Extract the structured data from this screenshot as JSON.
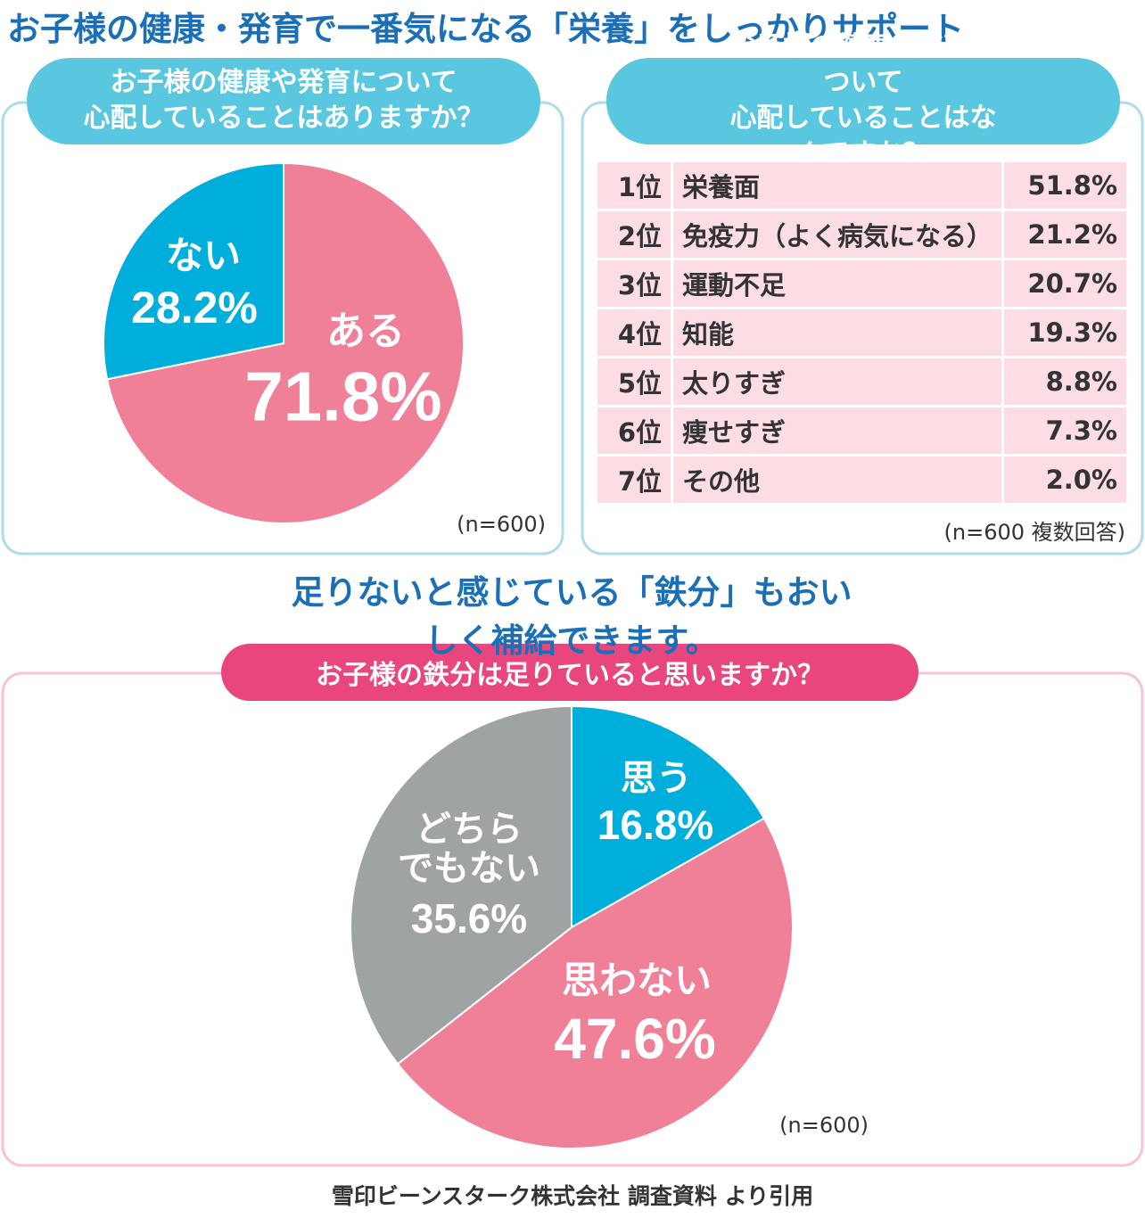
{
  "title": "お子様の健康・発育で一番気になる「栄養」をしっかりサポート",
  "chart_data": [
    {
      "type": "pie",
      "title": "お子様の健康や発育について\n心配していることはありますか？",
      "categories": [
        "ある",
        "ない"
      ],
      "values": [
        71.8,
        28.2
      ],
      "value_labels": [
        "71.8%",
        "28.2%"
      ],
      "colors": [
        "#f07f98",
        "#00aedb"
      ],
      "note": "(n=600)"
    },
    {
      "type": "pie",
      "title": "お子様の鉄分は足りていると思いますか？",
      "categories": [
        "思う",
        "思わない",
        "どちら\nでもない"
      ],
      "values": [
        16.8,
        47.6,
        35.6
      ],
      "value_labels": [
        "16.8%",
        "47.6%",
        "35.6%"
      ],
      "colors": [
        "#00aedb",
        "#f07f98",
        "#9fa3a4"
      ],
      "note": "(n=600)"
    }
  ],
  "ranking": {
    "title": "お子様の健康や発育について\n心配していることはなんですか？",
    "rows": [
      [
        "1位",
        "栄養面",
        "51.8%"
      ],
      [
        "2位",
        "免疫力（よく病気になる）",
        "21.2%"
      ],
      [
        "3位",
        "運動不足",
        "20.7%"
      ],
      [
        "4位",
        "知能",
        "19.3%"
      ],
      [
        "5位",
        "太りすぎ",
        "8.8%"
      ],
      [
        "6位",
        "痩せすぎ",
        "7.3%"
      ],
      [
        "7位",
        "その他",
        "2.0%"
      ]
    ],
    "note": "(n=600 複数回答)"
  },
  "heading": "足りないと感じている「鉄分」もおいしく補給できます。",
  "source": "雪印ビーンスターク株式会社 調査資料 より引用"
}
